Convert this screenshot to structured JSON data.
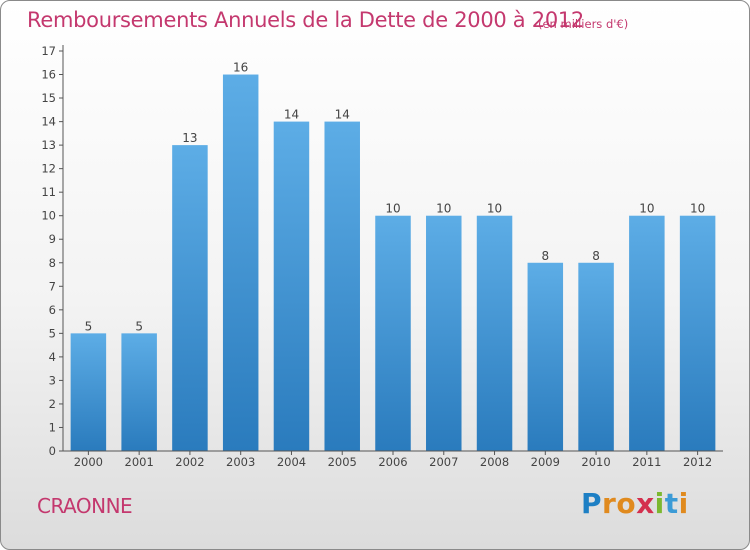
{
  "chart_data": {
    "type": "bar",
    "title": "Remboursements Annuels de la Dette de 2000 à 2012",
    "subtitle": "(en milliers d'€)",
    "categories": [
      "2000",
      "2001",
      "2002",
      "2003",
      "2004",
      "2005",
      "2006",
      "2007",
      "2008",
      "2009",
      "2010",
      "2011",
      "2012"
    ],
    "values": [
      5,
      5,
      13,
      16,
      14,
      14,
      10,
      10,
      10,
      8,
      8,
      10,
      10
    ],
    "data_labels": [
      "5",
      "5",
      "13",
      "16",
      "14",
      "14",
      "10",
      "10",
      "10",
      "8",
      "8",
      "10",
      "10"
    ],
    "y_ticks": [
      "0",
      "1",
      "2",
      "3",
      "4",
      "5",
      "6",
      "7",
      "8",
      "9",
      "10",
      "11",
      "12",
      "13",
      "14",
      "15",
      "16",
      "17"
    ],
    "ylim": [
      0,
      17
    ],
    "xlabel": "",
    "ylabel": "",
    "grid": false,
    "legend": "none",
    "bar_color_top": "#5dade6",
    "bar_color_bottom": "#2a7bbd"
  },
  "footer": {
    "commune": "CRAONNE",
    "logo_letters": [
      "P",
      "r",
      "o",
      "x",
      "i",
      "t",
      "i"
    ],
    "logo_colors": [
      "#1d7fc4",
      "#e08a1e",
      "#e08a1e",
      "#d4304e",
      "#7cb82f",
      "#3c9bd6",
      "#e08a1e"
    ]
  },
  "colors": {
    "title": "#c4386e",
    "axis": "#555555",
    "label_text": "#444444"
  }
}
